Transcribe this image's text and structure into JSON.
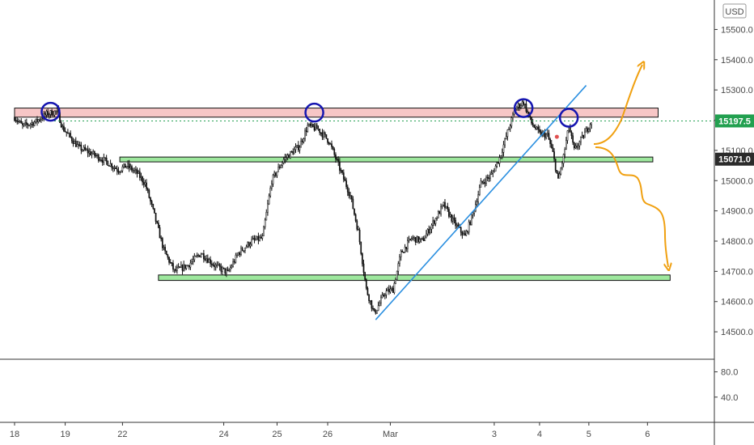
{
  "chart_data": {
    "type": "candlestick",
    "currency_badge": "USD",
    "y_axis": {
      "range": [
        14420,
        15560
      ],
      "ticks": [
        "15500.0",
        "15400.0",
        "15300.0",
        "15200.0",
        "15100.0",
        "15000.0",
        "14900.0",
        "14800.0",
        "14700.0",
        "14600.0",
        "14500.0"
      ],
      "tick_values": [
        15500,
        15400,
        15300,
        15200,
        15100,
        15000,
        14900,
        14800,
        14700,
        14600,
        14500
      ]
    },
    "lower_axis": {
      "ticks": [
        "80.0",
        "40.0"
      ],
      "tick_values": [
        80,
        40
      ],
      "range": [
        0,
        100
      ]
    },
    "x_axis": {
      "ticks": [
        "18",
        "19",
        "22",
        "24",
        "25",
        "26",
        "Mar",
        "3",
        "4",
        "5",
        "6"
      ],
      "tick_pos": [
        0,
        38,
        81,
        157,
        197,
        235,
        282,
        360,
        394,
        431,
        475
      ]
    },
    "current_price": "15197.5",
    "level_price": "15071.0",
    "colors": {
      "resistance": "#f7c6c6",
      "support": "#9ee89e",
      "trendline": "#2a8fe0",
      "circles": "#1515b0",
      "arrows": "#f0a010",
      "price_line": "#22a050",
      "tag_dark": "#2b2b2b"
    },
    "zones": [
      {
        "name": "resistance",
        "y1": 15210,
        "y2": 15240,
        "x1": 0,
        "x2": 483
      },
      {
        "name": "support-1",
        "y1": 15062,
        "y2": 15078,
        "x1": 79,
        "x2": 479
      },
      {
        "name": "support-2",
        "y1": 14670,
        "y2": 14688,
        "x1": 108,
        "x2": 492
      }
    ],
    "trendline": {
      "x1": 271,
      "y1": 14540,
      "x2": 429,
      "y2": 15315
    },
    "circles": [
      {
        "x": 27,
        "y": 15228
      },
      {
        "x": 225,
        "y": 15225
      },
      {
        "x": 382,
        "y": 15240
      },
      {
        "x": 416,
        "y": 15208
      }
    ],
    "candles": {
      "n": 434,
      "anchors": [
        [
          0,
          15210
        ],
        [
          6,
          15180
        ],
        [
          16,
          15195
        ],
        [
          24,
          15220
        ],
        [
          32,
          15230
        ],
        [
          36,
          15175
        ],
        [
          48,
          15110
        ],
        [
          60,
          15085
        ],
        [
          70,
          15060
        ],
        [
          78,
          15035
        ],
        [
          84,
          15050
        ],
        [
          92,
          15025
        ],
        [
          98,
          14990
        ],
        [
          104,
          14900
        ],
        [
          112,
          14770
        ],
        [
          120,
          14700
        ],
        [
          130,
          14720
        ],
        [
          140,
          14760
        ],
        [
          150,
          14720
        ],
        [
          160,
          14695
        ],
        [
          168,
          14760
        ],
        [
          178,
          14800
        ],
        [
          186,
          14810
        ],
        [
          193,
          15000
        ],
        [
          202,
          15070
        ],
        [
          214,
          15115
        ],
        [
          220,
          15180
        ],
        [
          228,
          15170
        ],
        [
          236,
          15130
        ],
        [
          244,
          15040
        ],
        [
          252,
          14950
        ],
        [
          258,
          14830
        ],
        [
          264,
          14640
        ],
        [
          270,
          14560
        ],
        [
          278,
          14630
        ],
        [
          284,
          14640
        ],
        [
          290,
          14760
        ],
        [
          298,
          14810
        ],
        [
          306,
          14800
        ],
        [
          314,
          14860
        ],
        [
          322,
          14920
        ],
        [
          330,
          14860
        ],
        [
          338,
          14815
        ],
        [
          344,
          14890
        ],
        [
          350,
          14990
        ],
        [
          358,
          15020
        ],
        [
          364,
          15075
        ],
        [
          370,
          15160
        ],
        [
          376,
          15240
        ],
        [
          382,
          15260
        ],
        [
          388,
          15190
        ],
        [
          394,
          15155
        ],
        [
          400,
          15150
        ],
        [
          404,
          15090
        ],
        [
          408,
          15000
        ],
        [
          412,
          15080
        ],
        [
          416,
          15180
        ],
        [
          420,
          15100
        ],
        [
          426,
          15140
        ],
        [
          433,
          15198
        ]
      ]
    },
    "sma_dot": {
      "x": 407,
      "y": 15145
    }
  }
}
